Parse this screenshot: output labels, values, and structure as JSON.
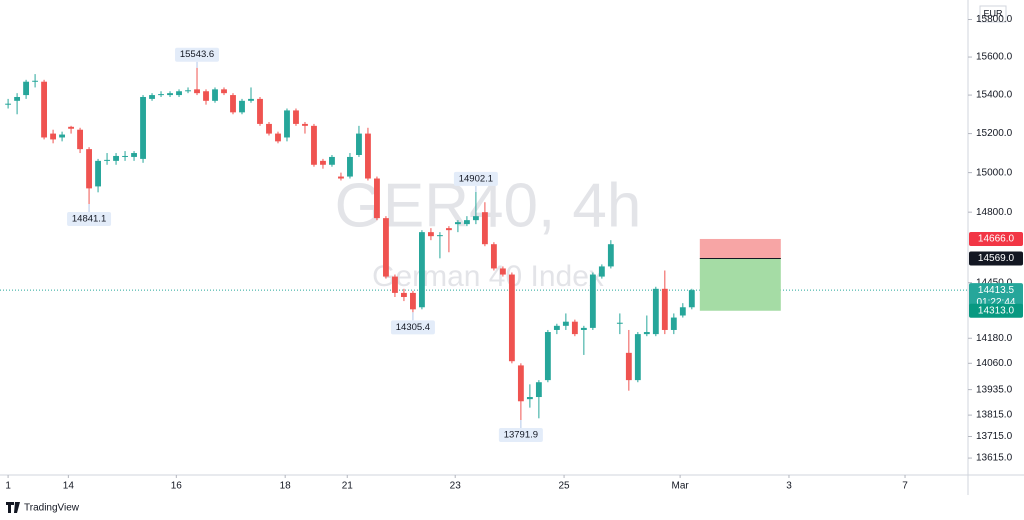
{
  "chart_data": {
    "type": "candlestick",
    "title": "GER40, 4h",
    "subtitle": "German 40 Index",
    "currency": "EUR",
    "log_scale": true,
    "grid": false,
    "up_color": "#26a69a",
    "down_color": "#ef5350",
    "x": [
      0,
      1,
      2,
      3,
      4,
      5,
      6,
      7,
      8,
      9,
      10,
      11,
      12,
      13,
      14,
      15,
      16,
      17,
      18,
      19,
      20,
      21,
      22,
      23,
      24,
      25,
      26,
      27,
      28,
      29,
      30,
      31,
      32,
      33,
      34,
      35,
      36,
      37,
      38,
      39,
      40,
      41,
      42,
      43,
      44,
      45,
      46,
      47,
      48,
      49,
      50,
      51,
      52,
      53,
      54,
      55,
      56,
      57,
      58,
      59,
      60,
      61,
      62,
      63,
      64,
      65,
      66,
      67,
      68,
      69,
      70,
      71,
      72,
      73,
      74,
      75,
      76
    ],
    "open": [
      15350,
      15370,
      15400,
      15470,
      15470,
      15200,
      15180,
      15235,
      15220,
      15120,
      14930,
      15060,
      15060,
      15080,
      15080,
      15070,
      15380,
      15400,
      15400,
      15400,
      15420,
      15430,
      15420,
      15370,
      15430,
      15400,
      15310,
      15370,
      15380,
      15250,
      15200,
      15180,
      15320,
      15250,
      15240,
      15060,
      15040,
      14980,
      14980,
      15090,
      15200,
      14970,
      14770,
      14480,
      14400,
      14400,
      14330,
      14700,
      14680,
      14720,
      14740,
      14740,
      14760,
      14800,
      14640,
      14520,
      14490,
      14050,
      13890,
      13900,
      13980,
      14220,
      14240,
      14260,
      14220,
      14230,
      14480,
      14530,
      14250,
      14110,
      13980,
      14200,
      14200,
      14420,
      14220,
      14290,
      14330
    ],
    "high": [
      15380,
      15410,
      15480,
      15510,
      15480,
      15220,
      15210,
      15240,
      15230,
      15130,
      15070,
      15100,
      15100,
      15110,
      15110,
      15400,
      15410,
      15420,
      15420,
      15430,
      15440,
      15543.6,
      15430,
      15440,
      15440,
      15410,
      15380,
      15440,
      15390,
      15260,
      15210,
      15330,
      15330,
      15260,
      15250,
      15070,
      15090,
      15000,
      15100,
      15240,
      15230,
      14980,
      14780,
      14490,
      14420,
      14410,
      14710,
      14720,
      14700,
      14730,
      14760,
      14780,
      14902.1,
      14850,
      14650,
      14530,
      14500,
      14060,
      13960,
      13980,
      14220,
      14250,
      14300,
      14270,
      14240,
      14500,
      14540,
      14660,
      14300,
      14220,
      14210,
      14290,
      14430,
      14510,
      14300,
      14350,
      14420
    ],
    "low": [
      15330,
      15300,
      15380,
      15440,
      15170,
      15150,
      15160,
      15200,
      15100,
      14841.1,
      14900,
      15040,
      15040,
      15060,
      15060,
      15050,
      15370,
      15390,
      15390,
      15390,
      15410,
      15400,
      15350,
      15360,
      15400,
      15300,
      15300,
      15360,
      15240,
      15190,
      15150,
      15160,
      15240,
      15200,
      15030,
      15020,
      15030,
      14960,
      14970,
      15080,
      14960,
      14760,
      14470,
      14380,
      14360,
      14305.4,
      14320,
      14660,
      14570,
      14600,
      14700,
      14730,
      14740,
      14630,
      14510,
      14480,
      14060,
      13791.9,
      13850,
      13800,
      13970,
      14200,
      14220,
      14190,
      14100,
      14220,
      14470,
      14520,
      14200,
      13930,
      13970,
      14190,
      14190,
      14200,
      14200,
      14280,
      14320
    ],
    "close": [
      15355,
      15390,
      15470,
      15475,
      15180,
      15170,
      15195,
      15225,
      15120,
      14920,
      15060,
      15065,
      15085,
      15085,
      15100,
      15390,
      15400,
      15405,
      15410,
      15420,
      15425,
      15410,
      15370,
      15430,
      15410,
      15310,
      15370,
      15380,
      15250,
      15200,
      15160,
      15320,
      15250,
      15240,
      15040,
      15040,
      15080,
      14970,
      15080,
      15200,
      14970,
      14770,
      14480,
      14400,
      14380,
      14320,
      14700,
      14680,
      14685,
      14710,
      14750,
      14760,
      14780,
      14640,
      14520,
      14490,
      14070,
      13880,
      13900,
      13970,
      14210,
      14240,
      14260,
      14200,
      14230,
      14490,
      14530,
      14640,
      14255,
      13980,
      14200,
      14210,
      14420,
      14220,
      14280,
      14330,
      14413.5
    ],
    "ylim": [
      13537,
      15905
    ],
    "yticks": [
      {
        "value": 15800,
        "label": "15800.0"
      },
      {
        "value": 15600,
        "label": "15600.0"
      },
      {
        "value": 15400,
        "label": "15400.0"
      },
      {
        "value": 15200,
        "label": "15200.0"
      },
      {
        "value": 15000,
        "label": "15000.0"
      },
      {
        "value": 14800,
        "label": "14800.0"
      },
      {
        "value": 14450,
        "label": "14450.0"
      },
      {
        "value": 14180,
        "label": "14180.0"
      },
      {
        "value": 14060,
        "label": "14060.0"
      },
      {
        "value": 13935,
        "label": "13935.0"
      },
      {
        "value": 13815,
        "label": "13815.0"
      },
      {
        "value": 13715,
        "label": "13715.0"
      },
      {
        "value": 13615,
        "label": "13615.0"
      }
    ],
    "xlim": [
      -0.9,
      106.7
    ],
    "xticks": [
      {
        "value": 0,
        "label": "1"
      },
      {
        "value": 6.7,
        "label": "14"
      },
      {
        "value": 18.7,
        "label": "16"
      },
      {
        "value": 30.8,
        "label": "18"
      },
      {
        "value": 37.7,
        "label": "21"
      },
      {
        "value": 49.7,
        "label": "23"
      },
      {
        "value": 61.8,
        "label": "25"
      },
      {
        "value": 74.7,
        "label": "Mar"
      },
      {
        "value": 86.8,
        "label": "3"
      },
      {
        "value": 99.7,
        "label": "7"
      }
    ],
    "annotations": [
      {
        "x": 21,
        "value": 15543.6
      },
      {
        "x": 9,
        "value": 14841.1
      },
      {
        "x": 45,
        "value": 14305.4
      },
      {
        "x": 52,
        "value": 14902.1
      },
      {
        "x": 57,
        "value": 13791.9
      }
    ],
    "last_price": 14413.5,
    "countdown": "01:22:44",
    "position": {
      "stop": {
        "value": 14666,
        "label": "14666.0"
      },
      "entry": {
        "value": 14569,
        "label": "14569.0"
      },
      "target": {
        "value": 14313,
        "label": "14313.0"
      }
    }
  },
  "footer": {
    "brand": "TradingView"
  }
}
